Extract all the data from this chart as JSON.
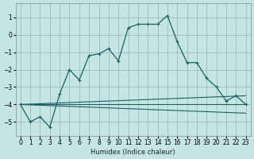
{
  "xlabel": "Humidex (Indice chaleur)",
  "ylabel": "",
  "bg_color": "#c5e5e5",
  "grid_color": "#9dbdbd",
  "line_color": "#1a6060",
  "xlim": [
    -0.5,
    23.5
  ],
  "ylim": [
    -5.8,
    1.8
  ],
  "xticks": [
    0,
    1,
    2,
    3,
    4,
    5,
    6,
    7,
    8,
    9,
    10,
    11,
    12,
    13,
    14,
    15,
    16,
    17,
    18,
    19,
    20,
    21,
    22,
    23
  ],
  "yticks": [
    -5,
    -4,
    -3,
    -2,
    -1,
    0,
    1
  ],
  "series": [
    {
      "x": [
        0,
        1,
        2,
        3,
        4,
        5,
        6,
        7,
        8,
        9,
        10,
        11,
        12,
        13,
        14,
        15,
        16,
        17,
        18,
        19,
        20,
        21,
        22,
        23
      ],
      "y": [
        -4.0,
        -5.0,
        -4.7,
        -5.3,
        -3.4,
        -2.0,
        -2.6,
        -1.2,
        -1.1,
        -0.8,
        -1.5,
        0.4,
        0.6,
        0.6,
        0.6,
        1.1,
        -0.4,
        -1.6,
        -1.6,
        -2.5,
        -3.0,
        -3.8,
        -3.5,
        -4.0
      ],
      "marker": true
    },
    {
      "x": [
        0,
        23
      ],
      "y": [
        -4.0,
        -3.5
      ],
      "marker": false
    },
    {
      "x": [
        0,
        23
      ],
      "y": [
        -4.0,
        -4.0
      ],
      "marker": false
    },
    {
      "x": [
        0,
        23
      ],
      "y": [
        -4.0,
        -4.5
      ],
      "marker": false
    }
  ]
}
